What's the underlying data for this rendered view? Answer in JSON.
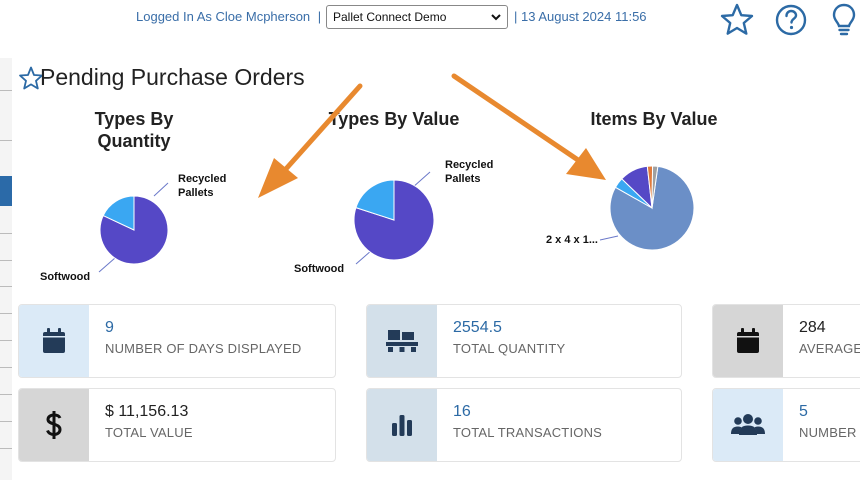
{
  "header": {
    "logged_in_text": "Logged In As Cloe Mcpherson",
    "separator": "|",
    "company_selected": "Pallet Connect Demo",
    "date_text": "| 13 August 2024 11:56",
    "icons": [
      "star-icon",
      "help-icon",
      "lightbulb-icon"
    ]
  },
  "panel": {
    "title": "Pending Purchase Orders"
  },
  "charts": {
    "types_by_quantity": {
      "title_line1": "Types By",
      "title_line2": "Quantity",
      "label_recycled_1": "Recycled",
      "label_recycled_2": "Pallets",
      "label_softwood": "Softwood"
    },
    "types_by_value": {
      "title": "Types By Value",
      "label_recycled_1": "Recycled",
      "label_recycled_2": "Pallets",
      "label_softwood": "Softwood"
    },
    "items_by_value": {
      "title": "Items By Value",
      "label_item": "2 x 4 x 1..."
    }
  },
  "chart_data": [
    {
      "type": "pie",
      "title": "Types By Quantity",
      "categories": [
        "Softwood",
        "Recycled Pallets"
      ],
      "values": [
        82,
        18
      ],
      "colors": [
        "#5548c6",
        "#3aa7f2"
      ]
    },
    {
      "type": "pie",
      "title": "Types By Value",
      "categories": [
        "Softwood",
        "Recycled Pallets"
      ],
      "values": [
        80,
        20
      ],
      "colors": [
        "#5548c6",
        "#3aa7f2"
      ]
    },
    {
      "type": "pie",
      "title": "Items By Value",
      "categories": [
        "2 x 4 x 1...",
        "",
        "",
        "",
        ""
      ],
      "values": [
        81,
        4,
        11,
        2,
        2
      ],
      "colors": [
        "#6b8fc7",
        "#3aa7f2",
        "#5548c6",
        "#e07a3a",
        "#a0a0a0"
      ]
    }
  ],
  "cards": [
    {
      "value": "9",
      "label": "NUMBER OF DAYS DISPLAYED",
      "icon": "calendar-icon",
      "icon_bg": "#dbeaf7"
    },
    {
      "value": "2554.5",
      "label": "TOTAL QUANTITY",
      "icon": "pallet-icon",
      "icon_bg": "#d3e0ea"
    },
    {
      "value": "284",
      "label": "AVERAGE",
      "icon": "calendar-icon",
      "icon_bg": "#d6d6d6"
    },
    {
      "value": "$ 11,156.13",
      "label": "TOTAL VALUE",
      "icon": "dollar-icon",
      "icon_bg": "#d6d6d6"
    },
    {
      "value": "16",
      "label": "TOTAL TRANSACTIONS",
      "icon": "bar-chart-icon",
      "icon_bg": "#d3e0ea"
    },
    {
      "value": "5",
      "label": "NUMBER",
      "icon": "users-icon",
      "icon_bg": "#dbeaf7"
    }
  ],
  "colors": {
    "accent": "#2c6aa5",
    "arrow": "#e8892f",
    "header_text": "#3a6ea8"
  }
}
